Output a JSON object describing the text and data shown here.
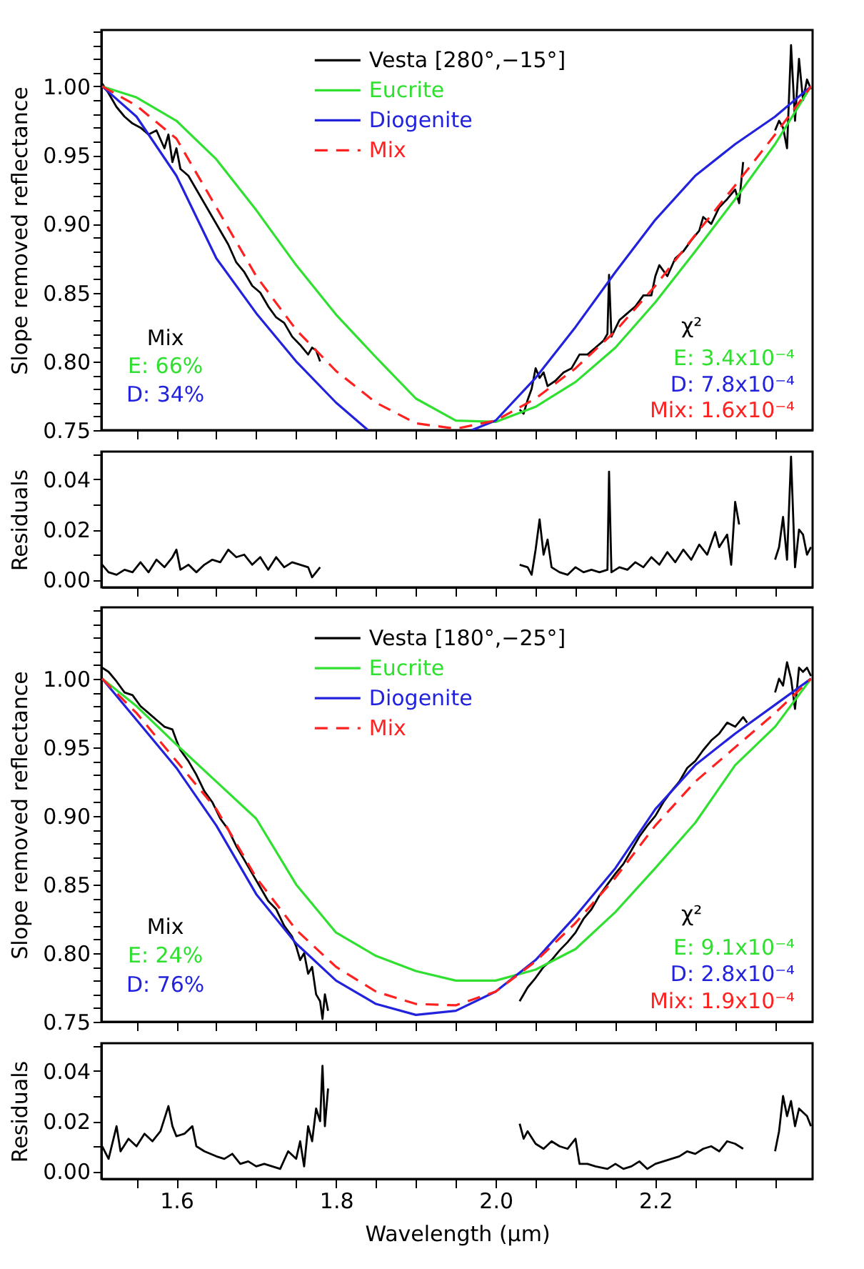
{
  "chart_data": [
    {
      "type": "line",
      "ylabel": "Slope removed reflectance",
      "legend": "top",
      "tick_labels": "y",
      "xlim": [
        1.506,
        2.397
      ],
      "ylim": [
        0.75,
        1.041
      ],
      "xticks": [
        {
          "value": 1.55,
          "label": null
        },
        1.6,
        {
          "value": 1.65,
          "label": null
        },
        {
          "value": 1.7,
          "label": null
        },
        {
          "value": 1.75,
          "label": null
        },
        1.8,
        {
          "value": 1.85,
          "label": null
        },
        {
          "value": 1.9,
          "label": null
        },
        {
          "value": 1.95,
          "label": null
        },
        2.0,
        {
          "value": 2.05,
          "label": null
        },
        {
          "value": 2.1,
          "label": null
        },
        {
          "value": 2.15,
          "label": null
        },
        2.2,
        {
          "value": 2.25,
          "label": null
        },
        {
          "value": 2.3,
          "label": null
        },
        {
          "value": 2.35,
          "label": null
        }
      ],
      "yticks": [
        {
          "value": 0.75,
          "label": "0.75"
        },
        {
          "value": 0.76,
          "label": null
        },
        {
          "value": 0.77,
          "label": null
        },
        {
          "value": 0.78,
          "label": null
        },
        {
          "value": 0.79,
          "label": null
        },
        {
          "value": 0.8,
          "label": "0.80"
        },
        {
          "value": 0.81,
          "label": null
        },
        {
          "value": 0.82,
          "label": null
        },
        {
          "value": 0.83,
          "label": null
        },
        {
          "value": 0.84,
          "label": null
        },
        0.85,
        {
          "value": 0.86,
          "label": null
        },
        {
          "value": 0.87,
          "label": null
        },
        {
          "value": 0.88,
          "label": null
        },
        {
          "value": 0.89,
          "label": null
        },
        {
          "value": 0.9,
          "label": "0.90"
        },
        {
          "value": 0.91,
          "label": null
        },
        {
          "value": 0.92,
          "label": null
        },
        {
          "value": 0.93,
          "label": null
        },
        {
          "value": 0.94,
          "label": null
        },
        0.95,
        {
          "value": 0.96,
          "label": null
        },
        {
          "value": 0.97,
          "label": null
        },
        {
          "value": 0.98,
          "label": null
        },
        {
          "value": 0.99,
          "label": null
        },
        {
          "value": 1.0,
          "label": "1.00"
        },
        {
          "value": 1.01,
          "label": null
        },
        {
          "value": 1.02,
          "label": null
        },
        {
          "value": 1.03,
          "label": null
        },
        {
          "value": 1.04,
          "label": null
        }
      ],
      "series": [
        {
          "name": "Vesta [280°,−15°]",
          "color": "#000000",
          "line_style": "solid",
          "x": [
            1.507,
            1.515,
            1.525,
            1.535,
            1.545,
            1.555,
            1.565,
            1.575,
            1.585,
            1.59,
            1.595,
            1.6,
            1.605,
            1.615,
            1.625,
            1.635,
            1.645,
            1.655,
            1.665,
            1.675,
            1.685,
            1.695,
            1.705,
            1.715,
            1.725,
            1.735,
            1.745,
            1.755,
            1.765,
            1.77,
            1.775,
            1.78,
            1.9,
            2.03,
            2.035,
            2.04,
            2.045,
            2.05,
            2.055,
            2.06,
            2.065,
            2.075,
            2.085,
            2.095,
            2.105,
            2.115,
            2.125,
            2.135,
            2.14,
            2.142,
            2.145,
            2.155,
            2.165,
            2.175,
            2.185,
            2.195,
            2.2,
            2.205,
            2.215,
            2.225,
            2.235,
            2.245,
            2.255,
            2.26,
            2.27,
            2.28,
            2.29,
            2.3,
            2.305,
            2.31,
            2.33,
            2.35,
            2.355,
            2.36,
            2.365,
            2.37,
            2.375,
            2.38,
            2.385,
            2.39,
            2.395
          ],
          "values": [
            1.002,
            0.995,
            0.985,
            0.978,
            0.973,
            0.97,
            0.965,
            0.968,
            0.955,
            0.965,
            0.945,
            0.955,
            0.94,
            0.935,
            0.925,
            0.915,
            0.905,
            0.895,
            0.885,
            0.872,
            0.865,
            0.855,
            0.85,
            0.84,
            0.832,
            0.828,
            0.818,
            0.812,
            0.805,
            0.81,
            0.808,
            0.8,
            null,
            0.765,
            0.762,
            0.772,
            0.78,
            0.795,
            0.788,
            0.792,
            0.782,
            0.786,
            0.792,
            0.795,
            0.805,
            0.805,
            0.81,
            0.815,
            0.82,
            0.863,
            0.818,
            0.83,
            0.835,
            0.84,
            0.848,
            0.848,
            0.862,
            0.87,
            0.862,
            0.875,
            0.88,
            0.888,
            0.895,
            0.905,
            0.9,
            0.912,
            0.918,
            0.925,
            0.915,
            0.945,
            null,
            0.968,
            0.975,
            0.97,
            0.955,
            1.03,
            0.975,
            1.02,
            0.99,
            1.005,
            0.998
          ]
        },
        {
          "name": "Eucrite",
          "color": "#30e030",
          "line_style": "solid",
          "x": [
            1.507,
            1.55,
            1.6,
            1.65,
            1.7,
            1.75,
            1.8,
            1.85,
            1.9,
            1.95,
            2.0,
            2.05,
            2.1,
            2.15,
            2.2,
            2.25,
            2.3,
            2.35,
            2.395
          ],
          "values": [
            1.0,
            0.992,
            0.975,
            0.947,
            0.91,
            0.87,
            0.834,
            0.803,
            0.773,
            0.757,
            0.756,
            0.767,
            0.785,
            0.81,
            0.843,
            0.88,
            0.918,
            0.958,
            1.0
          ]
        },
        {
          "name": "Diogenite",
          "color": "#2222dd",
          "line_style": "solid",
          "x": [
            1.507,
            1.55,
            1.6,
            1.65,
            1.7,
            1.75,
            1.8,
            1.84,
            1.9,
            1.97,
            2.0,
            2.05,
            2.1,
            2.15,
            2.2,
            2.25,
            2.3,
            2.35,
            2.395
          ],
          "values": [
            1.0,
            0.978,
            0.935,
            0.875,
            0.835,
            0.8,
            0.77,
            0.75,
            null,
            0.75,
            0.757,
            0.788,
            0.825,
            0.865,
            0.903,
            0.935,
            0.958,
            0.978,
            1.0
          ]
        },
        {
          "name": "Mix",
          "color": "#ff2020",
          "line_style": "dashed",
          "x": [
            1.507,
            1.55,
            1.6,
            1.65,
            1.7,
            1.75,
            1.8,
            1.85,
            1.9,
            1.95,
            2.0,
            2.05,
            2.1,
            2.15,
            2.2,
            2.25,
            2.3,
            2.35,
            2.395
          ],
          "values": [
            1.0,
            0.986,
            0.962,
            0.912,
            0.862,
            0.823,
            0.793,
            0.77,
            0.755,
            0.751,
            0.757,
            0.773,
            0.795,
            0.822,
            0.855,
            0.892,
            0.928,
            0.965,
            1.0
          ]
        }
      ],
      "annotations": [
        "Mix",
        "E: 66%",
        "D: 34%",
        "χ²",
        "E: 3.4x10⁻⁴",
        "D: 7.8x10⁻⁴",
        "Mix: 1.6x10⁻⁴"
      ]
    },
    {
      "type": "line",
      "ylabel": "Residuals",
      "tick_labels": "y",
      "xlim": [
        1.506,
        2.397
      ],
      "ylim": [
        -0.003,
        0.051
      ],
      "xticks": [
        {
          "value": 1.55,
          "label": null
        },
        1.6,
        {
          "value": 1.65,
          "label": null
        },
        {
          "value": 1.7,
          "label": null
        },
        {
          "value": 1.75,
          "label": null
        },
        1.8,
        {
          "value": 1.85,
          "label": null
        },
        {
          "value": 1.9,
          "label": null
        },
        {
          "value": 1.95,
          "label": null
        },
        2.0,
        {
          "value": 2.05,
          "label": null
        },
        {
          "value": 2.1,
          "label": null
        },
        {
          "value": 2.15,
          "label": null
        },
        2.2,
        {
          "value": 2.25,
          "label": null
        },
        {
          "value": 2.3,
          "label": null
        },
        {
          "value": 2.35,
          "label": null
        }
      ],
      "yticks": [
        {
          "value": 0.0,
          "label": "0.00"
        },
        {
          "value": 0.01,
          "label": null
        },
        0.02,
        {
          "value": 0.03,
          "label": null
        },
        0.04,
        {
          "value": 0.05,
          "label": null
        }
      ],
      "series": [
        {
          "color": "#000000",
          "line_style": "solid",
          "x": [
            1.507,
            1.515,
            1.525,
            1.535,
            1.545,
            1.555,
            1.565,
            1.575,
            1.585,
            1.595,
            1.6,
            1.605,
            1.615,
            1.625,
            1.635,
            1.645,
            1.655,
            1.665,
            1.675,
            1.685,
            1.695,
            1.705,
            1.715,
            1.725,
            1.735,
            1.745,
            1.755,
            1.765,
            1.77,
            1.78,
            1.9,
            2.03,
            2.04,
            2.045,
            2.05,
            2.055,
            2.06,
            2.065,
            2.07,
            2.08,
            2.09,
            2.1,
            2.11,
            2.12,
            2.13,
            2.14,
            2.142,
            2.145,
            2.155,
            2.165,
            2.175,
            2.185,
            2.195,
            2.205,
            2.215,
            2.225,
            2.235,
            2.245,
            2.255,
            2.265,
            2.275,
            2.28,
            2.29,
            2.295,
            2.3,
            2.305,
            2.33,
            2.35,
            2.355,
            2.36,
            2.365,
            2.37,
            2.375,
            2.38,
            2.385,
            2.39,
            2.395
          ],
          "values": [
            0.006,
            0.003,
            0.002,
            0.004,
            0.003,
            0.007,
            0.003,
            0.008,
            0.005,
            0.009,
            0.012,
            0.004,
            0.006,
            0.003,
            0.006,
            0.008,
            0.007,
            0.012,
            0.009,
            0.01,
            0.006,
            0.009,
            0.004,
            0.009,
            0.005,
            0.007,
            0.006,
            0.005,
            0.001,
            0.005,
            null,
            0.006,
            0.005,
            0.002,
            0.012,
            0.024,
            0.01,
            0.016,
            0.005,
            0.003,
            0.002,
            0.005,
            0.003,
            0.004,
            0.003,
            0.004,
            0.043,
            0.003,
            0.005,
            0.004,
            0.007,
            0.005,
            0.009,
            0.006,
            0.011,
            0.007,
            0.012,
            0.008,
            0.014,
            0.01,
            0.019,
            0.013,
            0.018,
            0.006,
            0.031,
            0.022,
            null,
            0.008,
            0.013,
            0.025,
            0.008,
            0.049,
            0.005,
            0.02,
            0.018,
            0.01,
            0.013
          ]
        }
      ]
    },
    {
      "type": "line",
      "ylabel": "Slope removed reflectance",
      "legend": "top",
      "tick_labels": "y",
      "xlim": [
        1.506,
        2.397
      ],
      "ylim": [
        0.75,
        1.052
      ],
      "xticks": [
        {
          "value": 1.55,
          "label": null
        },
        1.6,
        {
          "value": 1.65,
          "label": null
        },
        {
          "value": 1.7,
          "label": null
        },
        {
          "value": 1.75,
          "label": null
        },
        1.8,
        {
          "value": 1.85,
          "label": null
        },
        {
          "value": 1.9,
          "label": null
        },
        {
          "value": 1.95,
          "label": null
        },
        2.0,
        {
          "value": 2.05,
          "label": null
        },
        {
          "value": 2.1,
          "label": null
        },
        {
          "value": 2.15,
          "label": null
        },
        2.2,
        {
          "value": 2.25,
          "label": null
        },
        {
          "value": 2.3,
          "label": null
        },
        {
          "value": 2.35,
          "label": null
        }
      ],
      "yticks": [
        {
          "value": 0.75,
          "label": "0.75"
        },
        {
          "value": 0.76,
          "label": null
        },
        {
          "value": 0.77,
          "label": null
        },
        {
          "value": 0.78,
          "label": null
        },
        {
          "value": 0.79,
          "label": null
        },
        {
          "value": 0.8,
          "label": "0.80"
        },
        {
          "value": 0.81,
          "label": null
        },
        {
          "value": 0.82,
          "label": null
        },
        {
          "value": 0.83,
          "label": null
        },
        {
          "value": 0.84,
          "label": null
        },
        0.85,
        {
          "value": 0.86,
          "label": null
        },
        {
          "value": 0.87,
          "label": null
        },
        {
          "value": 0.88,
          "label": null
        },
        {
          "value": 0.89,
          "label": null
        },
        {
          "value": 0.9,
          "label": "0.90"
        },
        {
          "value": 0.91,
          "label": null
        },
        {
          "value": 0.92,
          "label": null
        },
        {
          "value": 0.93,
          "label": null
        },
        {
          "value": 0.94,
          "label": null
        },
        0.95,
        {
          "value": 0.96,
          "label": null
        },
        {
          "value": 0.97,
          "label": null
        },
        {
          "value": 0.98,
          "label": null
        },
        {
          "value": 0.99,
          "label": null
        },
        {
          "value": 1.0,
          "label": "1.00"
        },
        {
          "value": 1.01,
          "label": null
        },
        {
          "value": 1.02,
          "label": null
        },
        {
          "value": 1.03,
          "label": null
        },
        {
          "value": 1.04,
          "label": null
        },
        {
          "value": 1.05,
          "label": null
        }
      ],
      "series": [
        {
          "name": "Vesta [180°,−25°]",
          "color": "#000000",
          "line_style": "solid",
          "x": [
            1.507,
            1.515,
            1.525,
            1.535,
            1.545,
            1.555,
            1.565,
            1.575,
            1.585,
            1.595,
            1.6,
            1.605,
            1.615,
            1.625,
            1.635,
            1.645,
            1.655,
            1.665,
            1.675,
            1.685,
            1.695,
            1.705,
            1.715,
            1.725,
            1.735,
            1.745,
            1.75,
            1.755,
            1.76,
            1.765,
            1.77,
            1.775,
            1.78,
            1.783,
            1.786,
            1.79,
            1.9,
            2.03,
            2.04,
            2.05,
            2.06,
            2.07,
            2.08,
            2.09,
            2.1,
            2.11,
            2.12,
            2.13,
            2.14,
            2.15,
            2.16,
            2.17,
            2.18,
            2.19,
            2.2,
            2.21,
            2.22,
            2.23,
            2.24,
            2.25,
            2.26,
            2.27,
            2.28,
            2.29,
            2.3,
            2.31,
            2.315,
            2.33,
            2.35,
            2.355,
            2.36,
            2.365,
            2.37,
            2.375,
            2.38,
            2.385,
            2.39,
            2.395
          ],
          "values": [
            1.008,
            1.005,
            0.998,
            0.99,
            0.988,
            0.98,
            0.975,
            0.97,
            0.965,
            0.963,
            0.955,
            0.948,
            0.94,
            0.93,
            0.918,
            0.91,
            0.898,
            0.89,
            0.878,
            0.868,
            0.858,
            0.848,
            0.838,
            0.832,
            0.82,
            0.812,
            0.805,
            0.795,
            0.8,
            0.785,
            0.79,
            0.77,
            0.765,
            0.752,
            0.77,
            0.758,
            null,
            0.765,
            0.775,
            0.782,
            0.79,
            0.795,
            0.802,
            0.808,
            0.815,
            0.825,
            0.832,
            0.842,
            0.85,
            0.858,
            0.865,
            0.875,
            0.885,
            0.893,
            0.9,
            0.91,
            0.918,
            0.925,
            0.935,
            0.94,
            0.948,
            0.955,
            0.96,
            0.968,
            0.965,
            0.972,
            0.968,
            null,
            0.99,
            1.0,
            0.995,
            1.012,
            1.0,
            0.978,
            1.008,
            1.005,
            1.008,
            1.002
          ]
        },
        {
          "name": "Eucrite",
          "color": "#30e030",
          "line_style": "solid",
          "x": [
            1.507,
            1.55,
            1.6,
            1.65,
            1.7,
            1.75,
            1.8,
            1.85,
            1.9,
            1.95,
            2.0,
            2.05,
            2.1,
            2.15,
            2.2,
            2.25,
            2.3,
            2.35,
            2.395
          ],
          "values": [
            1.0,
            0.98,
            0.952,
            0.925,
            0.898,
            0.85,
            0.815,
            0.798,
            0.787,
            0.78,
            0.78,
            0.788,
            0.803,
            0.83,
            0.862,
            0.895,
            0.937,
            0.965,
            1.0
          ]
        },
        {
          "name": "Diogenite",
          "color": "#2222dd",
          "line_style": "solid",
          "x": [
            1.507,
            1.55,
            1.6,
            1.65,
            1.7,
            1.75,
            1.8,
            1.85,
            1.9,
            1.95,
            2.0,
            2.05,
            2.1,
            2.15,
            2.2,
            2.25,
            2.3,
            2.35,
            2.395
          ],
          "values": [
            1.0,
            0.97,
            0.935,
            0.893,
            0.843,
            0.807,
            0.78,
            0.763,
            0.755,
            0.758,
            0.772,
            0.795,
            0.827,
            0.862,
            0.905,
            0.937,
            0.96,
            0.981,
            1.0
          ]
        },
        {
          "name": "Mix",
          "color": "#ff2020",
          "line_style": "dashed",
          "x": [
            1.507,
            1.55,
            1.6,
            1.65,
            1.7,
            1.75,
            1.8,
            1.85,
            1.9,
            1.95,
            2.0,
            2.05,
            2.1,
            2.15,
            2.2,
            2.25,
            2.3,
            2.35,
            2.395
          ],
          "values": [
            1.0,
            0.975,
            0.94,
            0.905,
            0.855,
            0.817,
            0.79,
            0.772,
            0.763,
            0.762,
            0.772,
            0.794,
            0.822,
            0.855,
            0.893,
            0.925,
            0.95,
            0.975,
            1.0
          ]
        }
      ],
      "annotations": [
        "Mix",
        "E: 24%",
        "D: 76%",
        "χ²",
        "E: 9.1x10⁻⁴",
        "D: 2.8x10⁻⁴",
        "Mix: 1.9x10⁻⁴"
      ]
    },
    {
      "type": "line",
      "ylabel": "Residuals",
      "xlabel": "Wavelength (μm)",
      "xlim": [
        1.506,
        2.397
      ],
      "ylim": [
        -0.003,
        0.051
      ],
      "xticks": [
        {
          "value": 1.55,
          "label": null
        },
        1.6,
        {
          "value": 1.65,
          "label": null
        },
        {
          "value": 1.7,
          "label": null
        },
        {
          "value": 1.75,
          "label": null
        },
        1.8,
        {
          "value": 1.85,
          "label": null
        },
        {
          "value": 1.9,
          "label": null
        },
        {
          "value": 1.95,
          "label": null
        },
        {
          "value": 2.0,
          "label": "2.0"
        },
        {
          "value": 2.05,
          "label": null
        },
        {
          "value": 2.1,
          "label": null
        },
        {
          "value": 2.15,
          "label": null
        },
        2.2,
        {
          "value": 2.25,
          "label": null
        },
        {
          "value": 2.3,
          "label": null
        },
        {
          "value": 2.35,
          "label": null
        }
      ],
      "yticks": [
        {
          "value": 0.0,
          "label": "0.00"
        },
        {
          "value": 0.01,
          "label": null
        },
        0.02,
        {
          "value": 0.03,
          "label": null
        },
        0.04,
        {
          "value": 0.05,
          "label": null
        }
      ],
      "series": [
        {
          "color": "#000000",
          "line_style": "solid",
          "x": [
            1.507,
            1.515,
            1.525,
            1.53,
            1.54,
            1.55,
            1.56,
            1.57,
            1.58,
            1.59,
            1.595,
            1.6,
            1.61,
            1.62,
            1.625,
            1.635,
            1.65,
            1.66,
            1.67,
            1.68,
            1.69,
            1.7,
            1.71,
            1.72,
            1.73,
            1.74,
            1.75,
            1.755,
            1.76,
            1.765,
            1.77,
            1.775,
            1.78,
            1.783,
            1.786,
            1.79,
            1.9,
            2.03,
            2.035,
            2.04,
            2.05,
            2.06,
            2.07,
            2.08,
            2.09,
            2.1,
            2.105,
            2.115,
            2.125,
            2.14,
            2.15,
            2.16,
            2.17,
            2.18,
            2.19,
            2.2,
            2.21,
            2.22,
            2.23,
            2.24,
            2.25,
            2.26,
            2.27,
            2.28,
            2.29,
            2.3,
            2.31,
            2.33,
            2.35,
            2.355,
            2.36,
            2.365,
            2.37,
            2.375,
            2.38,
            2.39,
            2.395
          ],
          "values": [
            0.01,
            0.005,
            0.018,
            0.008,
            0.013,
            0.01,
            0.015,
            0.012,
            0.016,
            0.026,
            0.018,
            0.014,
            0.015,
            0.018,
            0.01,
            0.008,
            0.006,
            0.005,
            0.007,
            0.003,
            0.004,
            0.002,
            0.003,
            0.002,
            0.001,
            0.008,
            0.005,
            0.012,
            0.002,
            0.018,
            0.012,
            0.025,
            0.02,
            0.042,
            0.018,
            0.033,
            null,
            0.019,
            0.013,
            0.016,
            0.011,
            0.009,
            0.012,
            0.01,
            0.009,
            0.013,
            0.003,
            0.003,
            0.002,
            0.001,
            0.003,
            0.001,
            0.002,
            0.004,
            0.001,
            0.003,
            0.004,
            0.005,
            0.006,
            0.008,
            0.007,
            0.009,
            0.01,
            0.008,
            0.012,
            0.011,
            0.009,
            null,
            0.008,
            0.016,
            0.03,
            0.022,
            0.028,
            0.018,
            0.025,
            0.022,
            0.018
          ]
        }
      ]
    }
  ]
}
